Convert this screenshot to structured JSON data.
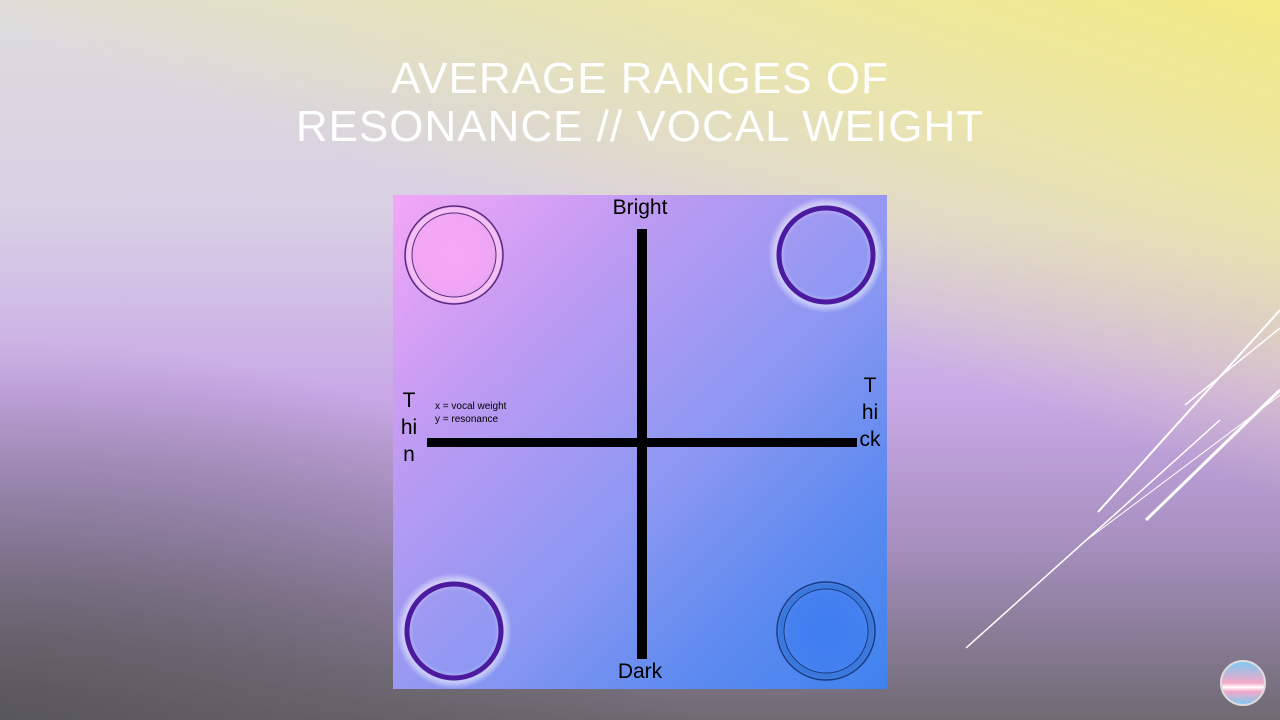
{
  "title": {
    "line1": "AVERAGE RANGES OF",
    "line2": "RESONANCE // VOCAL WEIGHT"
  },
  "diagram": {
    "axis_top": "Bright",
    "axis_bottom": "Dark",
    "axis_left": "Thin",
    "axis_right": "Thick",
    "legend": {
      "x_line": "x = vocal weight",
      "y_line": "y = resonance"
    },
    "circle_colors": {
      "top_left": "#e8a6f0",
      "top_right": "#4b1a9e",
      "bottom_left": "#4b1a9e",
      "bottom_right": "#2a5fc8"
    }
  },
  "logo_icon": "voice-logo-icon"
}
